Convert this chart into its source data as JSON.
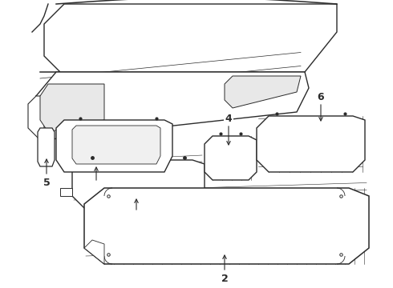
{
  "background_color": "#ffffff",
  "line_color": "#2a2a2a",
  "line_width": 0.8,
  "label_fontsize": 9,
  "figsize": [
    4.9,
    3.6
  ],
  "dpi": 100,
  "xlim": [
    0,
    49
  ],
  "ylim": [
    0,
    36
  ]
}
